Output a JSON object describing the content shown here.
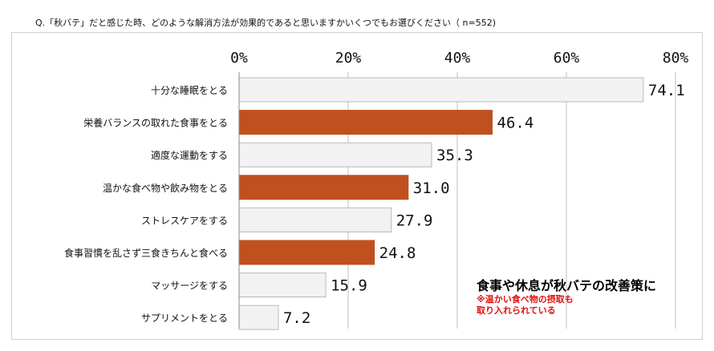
{
  "question": "Q.「秋バテ」だと感じた時、どのような解消方法が効果的であると思いますかいくつでもお選びください（ n=552)",
  "chart_data": {
    "type": "bar",
    "orientation": "horizontal",
    "categories": [
      "十分な睡眠をとる",
      "栄養バランスの取れた食事をとる",
      "適度な運動をする",
      "温かな食べ物や飲み物をとる",
      "ストレスケアをする",
      "食事習慣を乱さず三食きちんと食べる",
      "マッサージをする",
      "サプリメントをとる"
    ],
    "values": [
      74.1,
      46.4,
      35.3,
      31.0,
      27.9,
      24.8,
      15.9,
      7.2
    ],
    "value_labels": [
      "74.1",
      "46.4",
      "35.3",
      "31.0",
      "27.9",
      "24.8",
      "15.9",
      "7.2"
    ],
    "highlighted": [
      false,
      true,
      false,
      true,
      false,
      true,
      false,
      false
    ],
    "xlim": [
      0,
      80
    ],
    "ticks": [
      0,
      20,
      40,
      60,
      80
    ],
    "tick_labels": [
      "0%",
      "20%",
      "40%",
      "60%",
      "80%"
    ],
    "grid": true,
    "colors": {
      "highlight": "#c0501f",
      "normal": "#f2f2f2",
      "normal_border": "#b8b8b8",
      "grid": "#bfbfbf"
    }
  },
  "callout": {
    "main": "食事や休息が秋バテの改善策に",
    "note_line1": "※温かい食べ物の摂取も",
    "note_line2": "取り入れられている"
  }
}
